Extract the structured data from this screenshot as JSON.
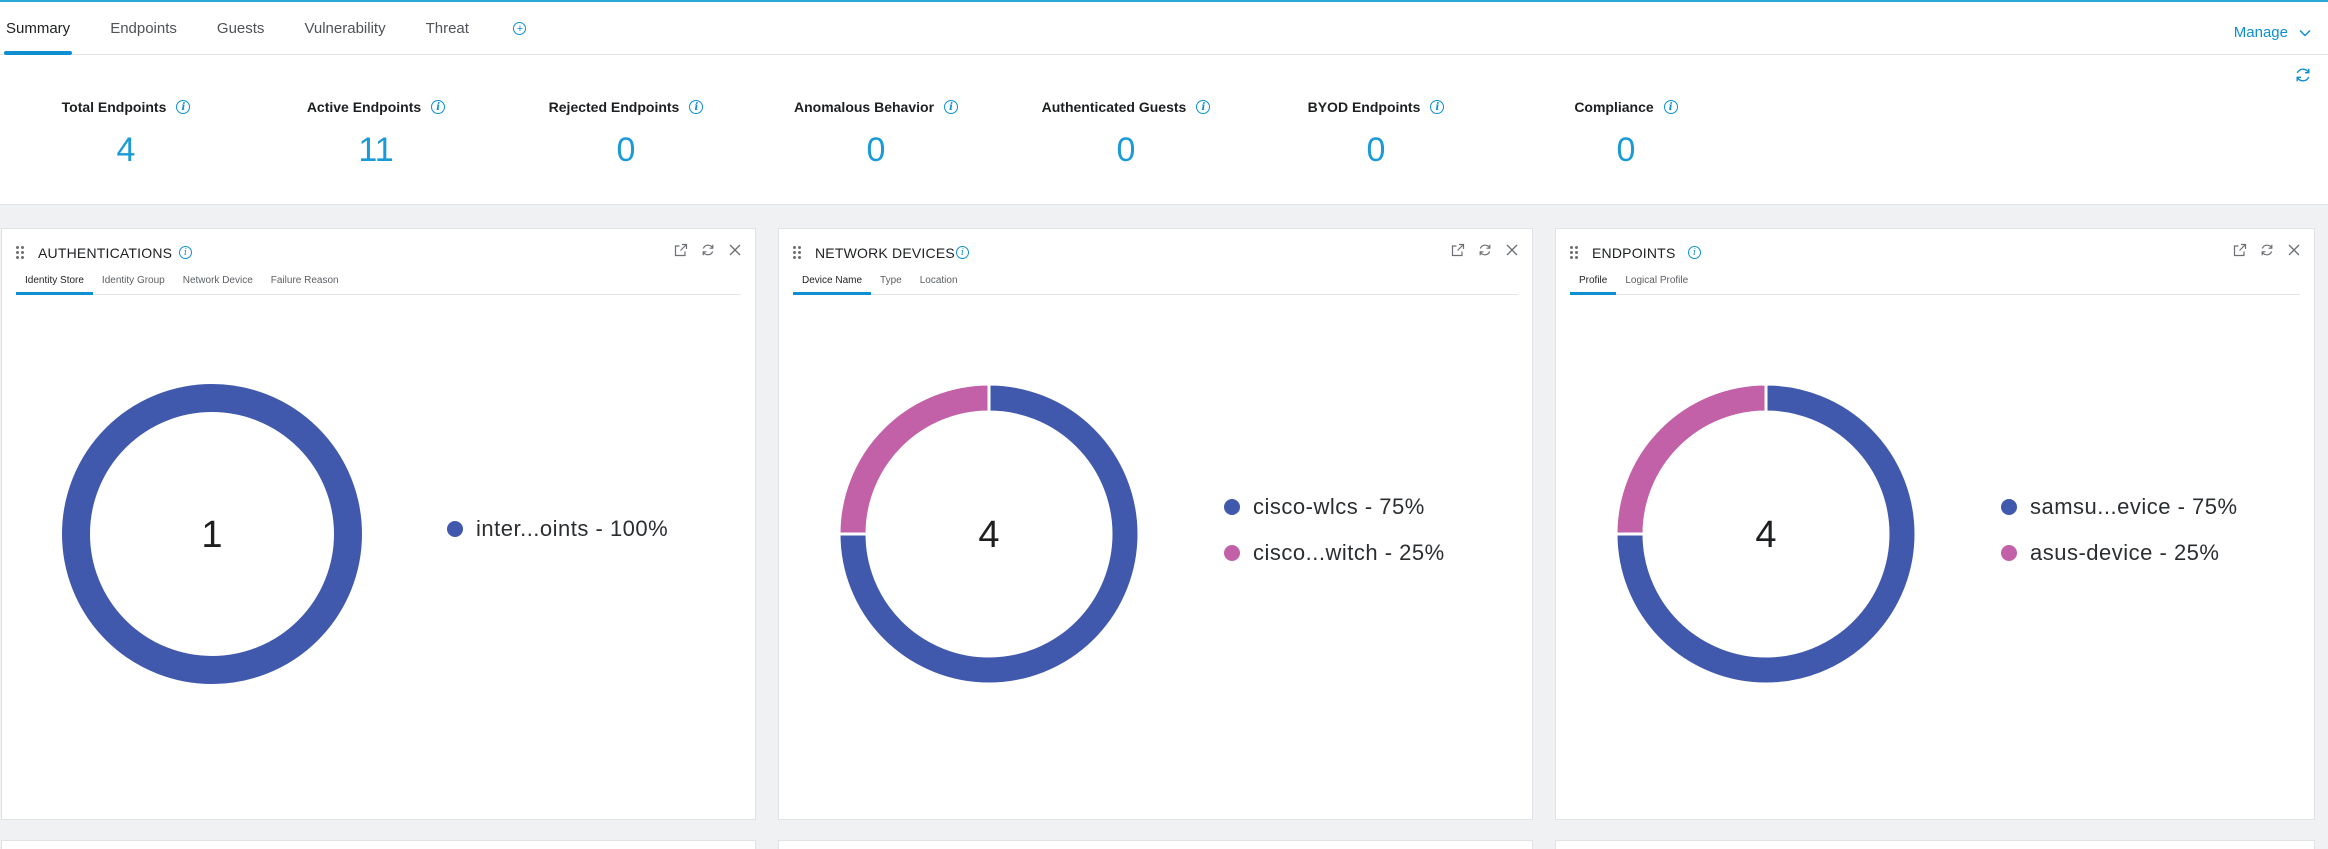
{
  "tabs": [
    "Summary",
    "Endpoints",
    "Guests",
    "Vulnerability",
    "Threat"
  ],
  "manage_label": "Manage",
  "metrics": [
    {
      "label": "Total Endpoints",
      "value": "4"
    },
    {
      "label": "Active Endpoints",
      "value": "11"
    },
    {
      "label": "Rejected Endpoints",
      "value": "0"
    },
    {
      "label": "Anomalous Behavior",
      "value": "0"
    },
    {
      "label": "Authenticated Guests",
      "value": "0"
    },
    {
      "label": "BYOD Endpoints",
      "value": "0"
    },
    {
      "label": "Compliance",
      "value": "0"
    }
  ],
  "colors": {
    "primary_series": "#4159ad",
    "secondary_series": "#c260a8",
    "accent": "#0d8fd1"
  },
  "dashlets": [
    {
      "title": "AUTHENTICATIONS",
      "subtabs": [
        "Identity Store",
        "Identity Group",
        "Network Device",
        "Failure Reason"
      ],
      "chart_data": {
        "type": "pie",
        "center_value": "1",
        "slices": [
          {
            "label": "inter...oints - 100%",
            "value": 100,
            "color": "#4159ad"
          }
        ]
      }
    },
    {
      "title": "NETWORK DEVICES",
      "subtabs": [
        "Device Name",
        "Type",
        "Location"
      ],
      "chart_data": {
        "type": "pie",
        "center_value": "4",
        "slices": [
          {
            "label": "cisco-wlcs - 75%",
            "value": 75,
            "color": "#4159ad"
          },
          {
            "label": "cisco...witch - 25%",
            "value": 25,
            "color": "#c260a8"
          }
        ]
      }
    },
    {
      "title": "ENDPOINTS",
      "subtabs": [
        "Profile",
        "Logical Profile"
      ],
      "chart_data": {
        "type": "pie",
        "center_value": "4",
        "slices": [
          {
            "label": "samsu...evice - 75%",
            "value": 75,
            "color": "#4159ad"
          },
          {
            "label": "asus-device - 25%",
            "value": 25,
            "color": "#c260a8"
          }
        ]
      }
    }
  ]
}
